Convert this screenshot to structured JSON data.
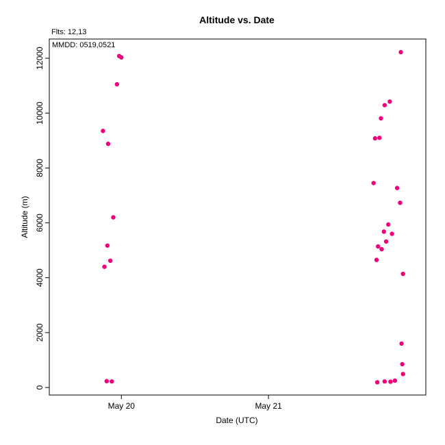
{
  "chart_data": {
    "type": "scatter",
    "title": "Altitude  vs. Date",
    "subtitle": "Flts: 12,13",
    "annotation": "MMDD: 0519,0521",
    "xlabel": "Date (UTC)",
    "ylabel": "Altitude (m)",
    "x_ticks": [
      {
        "label": "May 20",
        "value": 0.0
      },
      {
        "label": "May 21",
        "value": 1.0
      }
    ],
    "xlim": [
      -0.49,
      2.07
    ],
    "y_ticks": [
      0,
      2000,
      4000,
      6000,
      8000,
      10000,
      12000
    ],
    "ylim": [
      -275,
      12700
    ],
    "grid": false,
    "point_color": "#f0007a",
    "series": [
      {
        "x_unit": "days since May 20 00:00 UTC",
        "points": [
          {
            "x": -0.125,
            "y": 9350
          },
          {
            "x": -0.09,
            "y": 8880
          },
          {
            "x": -0.055,
            "y": 6200
          },
          {
            "x": -0.03,
            "y": 11050
          },
          {
            "x": -0.015,
            "y": 12080
          },
          {
            "x": 0.0,
            "y": 12030
          },
          {
            "x": -0.095,
            "y": 5170
          },
          {
            "x": -0.075,
            "y": 4620
          },
          {
            "x": -0.115,
            "y": 4400
          },
          {
            "x": -0.1,
            "y": 230
          },
          {
            "x": -0.065,
            "y": 220
          },
          {
            "x": 1.715,
            "y": 7450
          },
          {
            "x": 1.725,
            "y": 9080
          },
          {
            "x": 1.755,
            "y": 9100
          },
          {
            "x": 1.765,
            "y": 9810
          },
          {
            "x": 1.79,
            "y": 10290
          },
          {
            "x": 1.825,
            "y": 10420
          },
          {
            "x": 1.875,
            "y": 7270
          },
          {
            "x": 1.895,
            "y": 6730
          },
          {
            "x": 1.9,
            "y": 12220
          },
          {
            "x": 1.815,
            "y": 5940
          },
          {
            "x": 1.785,
            "y": 5680
          },
          {
            "x": 1.84,
            "y": 5600
          },
          {
            "x": 1.8,
            "y": 5320
          },
          {
            "x": 1.745,
            "y": 5140
          },
          {
            "x": 1.77,
            "y": 5040
          },
          {
            "x": 1.735,
            "y": 4650
          },
          {
            "x": 1.915,
            "y": 4140
          },
          {
            "x": 1.905,
            "y": 1600
          },
          {
            "x": 1.91,
            "y": 850
          },
          {
            "x": 1.915,
            "y": 490
          },
          {
            "x": 1.74,
            "y": 190
          },
          {
            "x": 1.79,
            "y": 220
          },
          {
            "x": 1.83,
            "y": 210
          },
          {
            "x": 1.86,
            "y": 250
          }
        ]
      }
    ]
  }
}
